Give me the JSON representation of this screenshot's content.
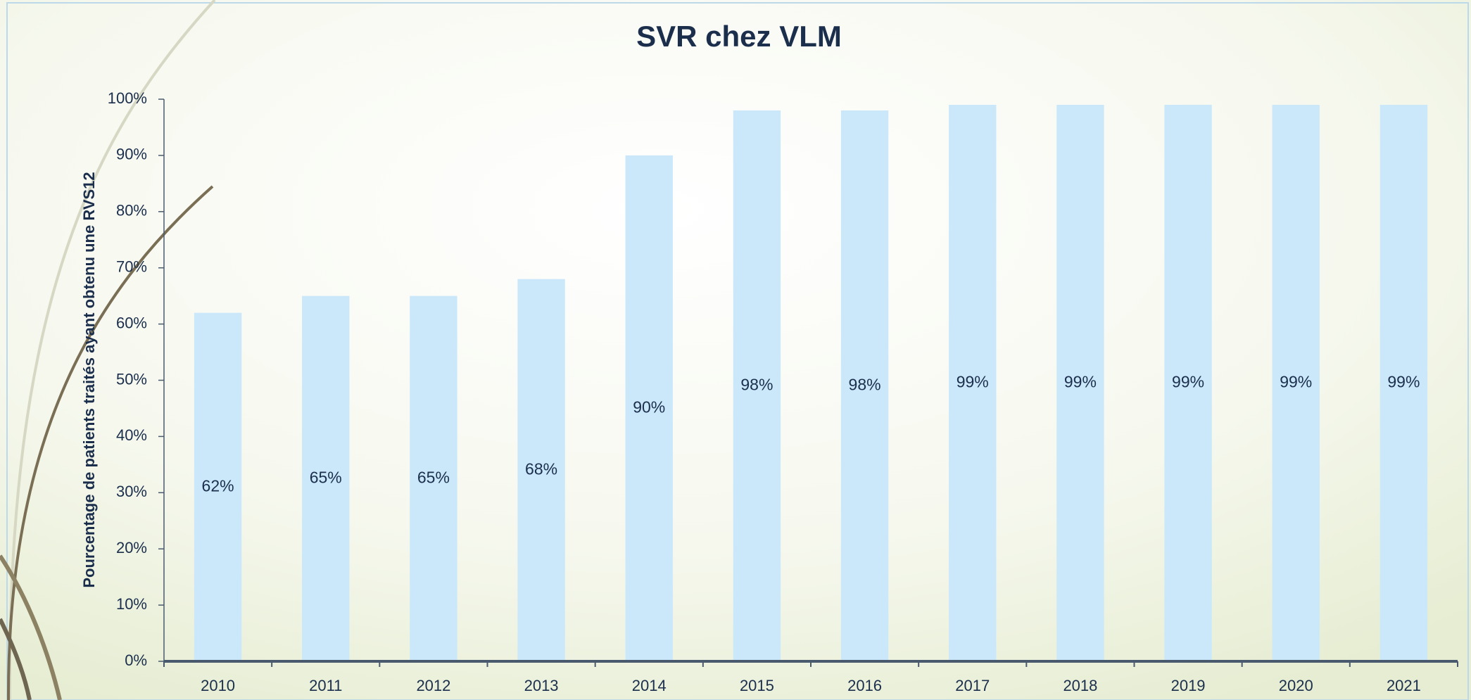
{
  "chart_data": {
    "type": "bar",
    "title": "SVR chez VLM",
    "y_label": "Pourcentage de patients traités ayant obtenu une RVS12",
    "categories": [
      "2010",
      "2011",
      "2012",
      "2013",
      "2014",
      "2015",
      "2016",
      "2017",
      "2018",
      "2019",
      "2020",
      "2021"
    ],
    "values": [
      62,
      65,
      65,
      68,
      90,
      98,
      98,
      99,
      99,
      99,
      99,
      99
    ],
    "value_labels": [
      "62%",
      "65%",
      "65%",
      "68%",
      "90%",
      "98%",
      "98%",
      "99%",
      "99%",
      "99%",
      "99%",
      "99%"
    ],
    "color": "#cbe8fb",
    "ylim": [
      0,
      100
    ],
    "yticks": [
      {
        "value": 0,
        "label": "0%"
      },
      {
        "value": 10,
        "label": "10%"
      },
      {
        "value": 20,
        "label": "20%"
      },
      {
        "value": 30,
        "label": "30%"
      },
      {
        "value": 40,
        "label": "40%"
      },
      {
        "value": 50,
        "label": "50%"
      },
      {
        "value": 60,
        "label": "60%"
      },
      {
        "value": 70,
        "label": "70%"
      },
      {
        "value": 80,
        "label": "80%"
      },
      {
        "value": 90,
        "label": "90%"
      },
      {
        "value": 100,
        "label": "100%"
      }
    ],
    "grid": false
  }
}
